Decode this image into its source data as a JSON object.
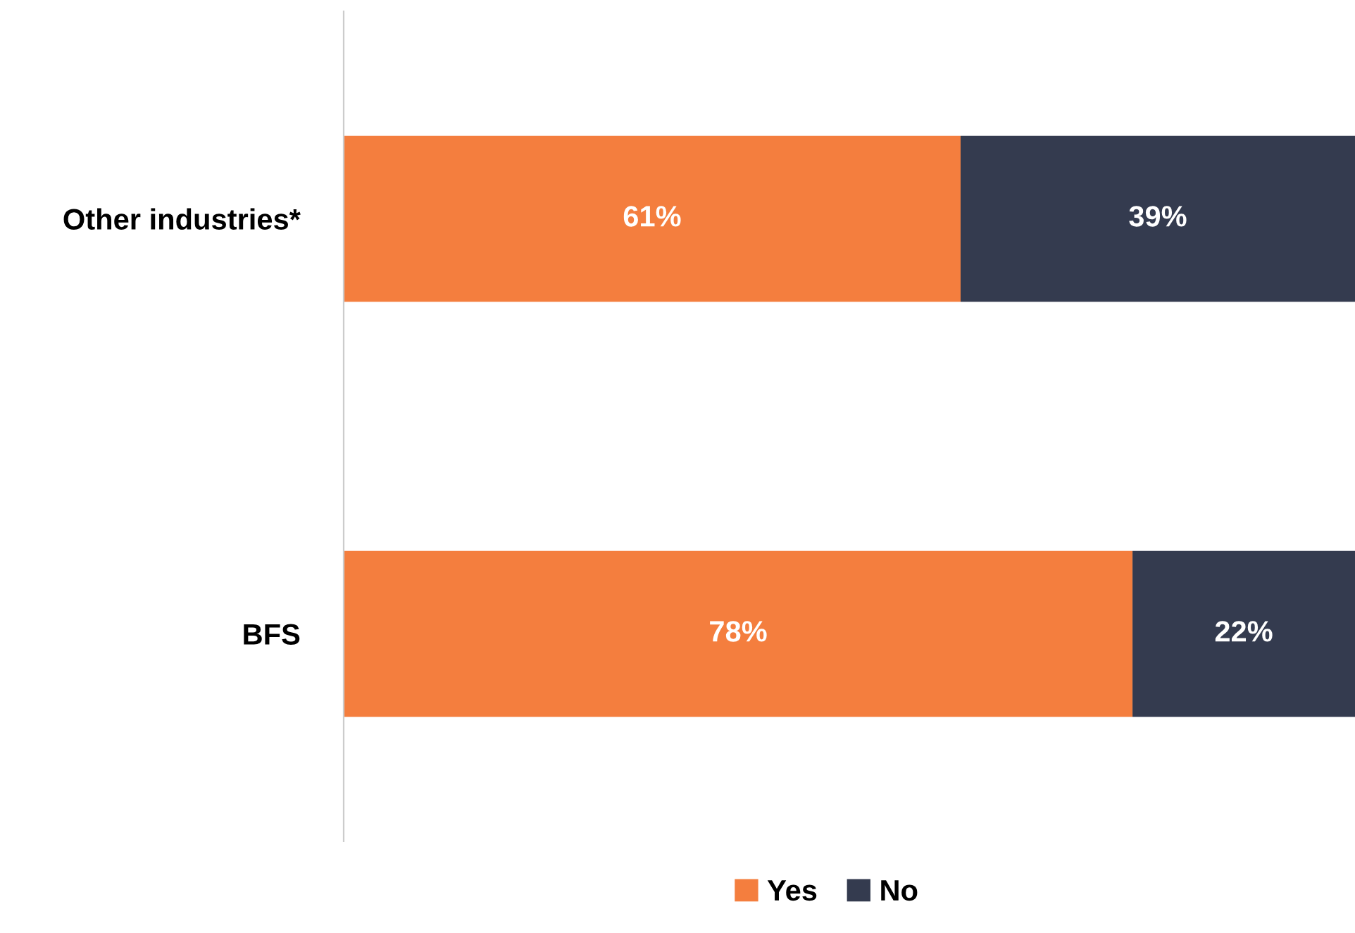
{
  "chart_data": {
    "type": "bar",
    "orientation": "horizontal",
    "stacked": true,
    "categories": [
      "Other industries*",
      "BFS"
    ],
    "series": [
      {
        "name": "Yes",
        "color": "#f47e3e",
        "values": [
          61,
          78
        ],
        "value_labels": [
          "61%",
          "78%"
        ]
      },
      {
        "name": "No",
        "color": "#343b4f",
        "values": [
          39,
          22
        ],
        "value_labels": [
          "39%",
          "22%"
        ]
      }
    ],
    "xlim": [
      0,
      100
    ],
    "tick_labels": "y",
    "grid": false,
    "legend": "bottom"
  }
}
